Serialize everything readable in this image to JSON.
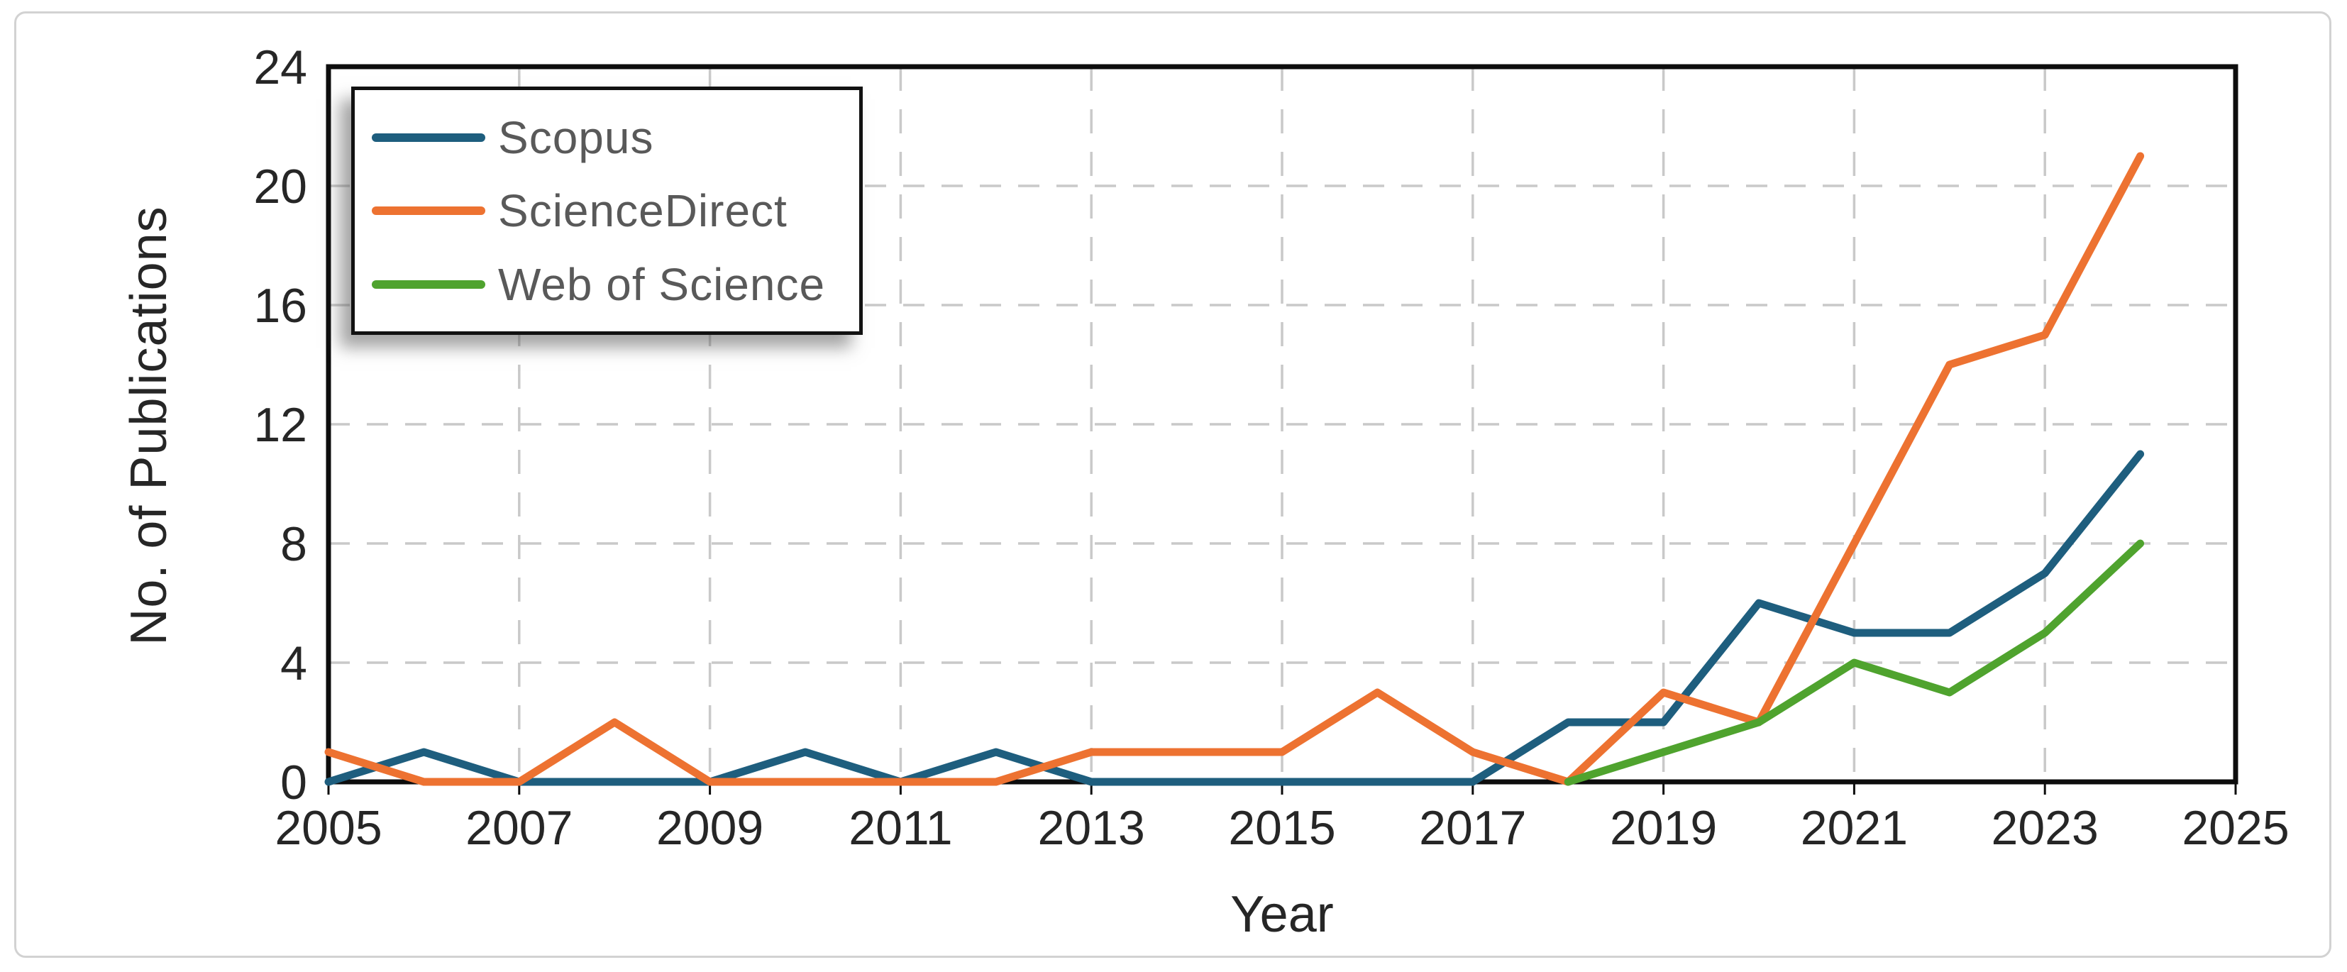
{
  "figure": {
    "background": "#ffffff",
    "frame_border_color": "#d2d2d2"
  },
  "axes": {
    "x_title": "Year",
    "y_title": "No. of Publications",
    "tick_label_color": "#262626",
    "grid_color": "#c9c9c9",
    "axis_color": "#0d0d0d"
  },
  "legend": {
    "text_color": "#595959",
    "items": [
      {
        "label": "Scopus",
        "color": "#1E5E7E"
      },
      {
        "label": "ScienceDirect",
        "color": "#ED7231"
      },
      {
        "label": "Web of Science",
        "color": "#4FA32E"
      }
    ]
  },
  "chart_data": {
    "type": "line",
    "title": "",
    "xlabel": "Year",
    "ylabel": "No. of Publications",
    "x": [
      2005,
      2006,
      2007,
      2008,
      2009,
      2010,
      2011,
      2012,
      2013,
      2014,
      2015,
      2016,
      2017,
      2018,
      2019,
      2020,
      2021,
      2022,
      2023,
      2024
    ],
    "series": [
      {
        "name": "Scopus",
        "color": "#1E5E7E",
        "values": [
          0,
          1,
          0,
          0,
          0,
          1,
          0,
          1,
          0,
          0,
          0,
          0,
          0,
          2,
          2,
          6,
          5,
          5,
          7,
          11
        ]
      },
      {
        "name": "ScienceDirect",
        "color": "#ED7231",
        "values": [
          1,
          0,
          0,
          2,
          0,
          0,
          0,
          0,
          1,
          1,
          1,
          3,
          1,
          0,
          3,
          2,
          8,
          14,
          15,
          21
        ]
      },
      {
        "name": "Web of Science",
        "color": "#4FA32E",
        "values": [
          null,
          null,
          null,
          null,
          null,
          null,
          null,
          null,
          null,
          null,
          null,
          null,
          null,
          0,
          1,
          2,
          4,
          3,
          5,
          8
        ]
      }
    ],
    "xlim": [
      2005,
      2025
    ],
    "ylim": [
      0,
      24
    ],
    "xticks": [
      2005,
      2007,
      2009,
      2011,
      2013,
      2015,
      2017,
      2019,
      2021,
      2023,
      2025
    ],
    "yticks": [
      0,
      4,
      8,
      12,
      16,
      20,
      24
    ],
    "grid": "dashed",
    "legend_position": "top-left",
    "line_width": 11
  }
}
